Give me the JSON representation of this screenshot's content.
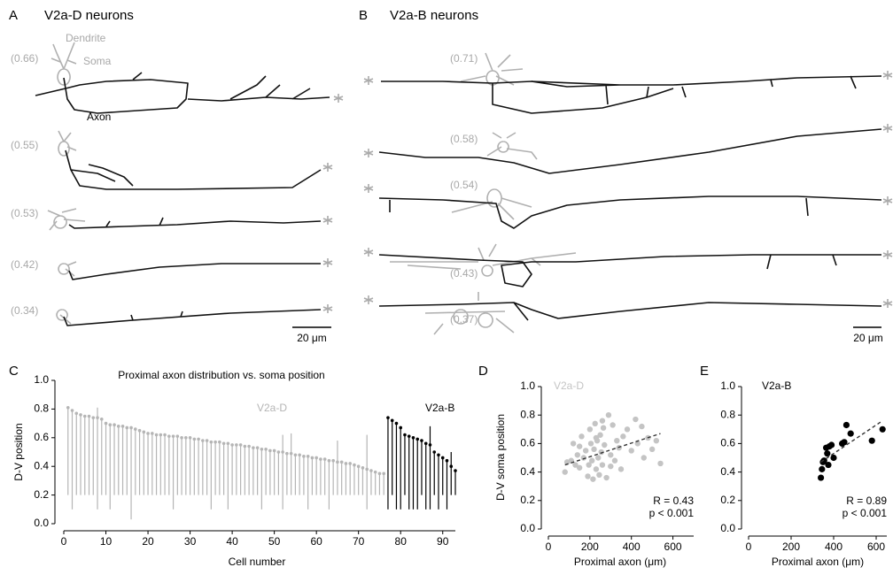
{
  "panel_a": {
    "letter": "A",
    "title": "V2a-D neurons",
    "dendrite": "Dendrite",
    "soma": "Soma",
    "axon": "Axon",
    "positions": [
      "(0.66)",
      "(0.55)",
      "(0.53)",
      "(0.42)",
      "(0.34)"
    ],
    "scale": "20 μm"
  },
  "panel_b": {
    "letter": "B",
    "title": "V2a-B neurons",
    "positions": [
      "(0.71)",
      "(0.58)",
      "(0.54)",
      "(0.43)",
      "(0.37)"
    ],
    "scale": "20 μm"
  },
  "chart_data": [
    {
      "type": "dot_range",
      "panel": "C",
      "title": "Proximal axon distribution vs. soma position",
      "x_label": "Cell number",
      "y_label": "D-V position",
      "xlim": [
        0,
        93
      ],
      "xticks": [
        0,
        10,
        20,
        30,
        40,
        50,
        60,
        70,
        80,
        90
      ],
      "ylim": [
        0,
        1
      ],
      "yticks": [
        {
          "value": 0,
          "label": "0.0"
        },
        {
          "value": 0.2,
          "label": "0.2"
        },
        {
          "value": 0.4,
          "label": "0.4"
        },
        {
          "value": 0.6,
          "label": "0.6"
        },
        {
          "value": 0.8,
          "label": "0.8"
        },
        {
          "value": 1,
          "label": "1.0"
        }
      ],
      "series": [
        {
          "name": "V2a-D",
          "color": "#b5b5b5",
          "x": [
            1,
            2,
            3,
            4,
            5,
            6,
            7,
            8,
            9,
            10,
            11,
            12,
            13,
            14,
            15,
            16,
            17,
            18,
            19,
            20,
            21,
            22,
            23,
            24,
            25,
            26,
            27,
            28,
            29,
            30,
            31,
            32,
            33,
            34,
            35,
            36,
            37,
            38,
            39,
            40,
            41,
            42,
            43,
            44,
            45,
            46,
            47,
            48,
            49,
            50,
            51,
            52,
            53,
            54,
            55,
            56,
            57,
            58,
            59,
            60,
            61,
            62,
            63,
            64,
            65,
            66,
            67,
            68,
            69,
            70,
            71,
            72,
            73,
            74,
            75,
            76
          ],
          "values": [
            0.81,
            0.79,
            0.77,
            0.76,
            0.75,
            0.75,
            0.74,
            0.74,
            0.73,
            0.7,
            0.69,
            0.69,
            0.68,
            0.68,
            0.67,
            0.67,
            0.66,
            0.65,
            0.64,
            0.63,
            0.63,
            0.62,
            0.62,
            0.62,
            0.61,
            0.61,
            0.61,
            0.6,
            0.6,
            0.6,
            0.59,
            0.59,
            0.58,
            0.58,
            0.57,
            0.57,
            0.57,
            0.56,
            0.56,
            0.55,
            0.55,
            0.55,
            0.54,
            0.54,
            0.53,
            0.53,
            0.52,
            0.52,
            0.51,
            0.51,
            0.5,
            0.5,
            0.49,
            0.49,
            0.48,
            0.48,
            0.47,
            0.47,
            0.46,
            0.46,
            0.45,
            0.45,
            0.44,
            0.44,
            0.43,
            0.43,
            0.42,
            0.42,
            0.41,
            0.4,
            0.39,
            0.38,
            0.37,
            0.36,
            0.35,
            0.35
          ],
          "low": [
            0.2,
            0.1,
            0.2,
            0.2,
            0.2,
            0.2,
            0.2,
            0.1,
            0.2,
            0.2,
            0.1,
            0.2,
            0.2,
            0.2,
            0.2,
            0.03,
            0.2,
            0.2,
            0.2,
            0.2,
            0.2,
            0.2,
            0.2,
            0.2,
            0.2,
            0.1,
            0.2,
            0.2,
            0.2,
            0.2,
            0.2,
            0.2,
            0.2,
            0.2,
            0.1,
            0.2,
            0.2,
            0.2,
            0.1,
            0.2,
            0.2,
            0.2,
            0.2,
            0.2,
            0.2,
            0.2,
            0.1,
            0.2,
            0.2,
            0.2,
            0.2,
            0.1,
            0.2,
            0.2,
            0.2,
            0.2,
            0.2,
            0.1,
            0.2,
            0.2,
            0.2,
            0.2,
            0.1,
            0.2,
            0.2,
            0.2,
            0.2,
            0.2,
            0.2,
            0.2,
            0.2,
            0.1,
            0.2,
            0.2,
            0.2,
            0.2
          ],
          "high": [
            0.81,
            0.79,
            0.77,
            0.76,
            0.75,
            0.75,
            0.74,
            0.81,
            0.73,
            0.7,
            0.69,
            0.69,
            0.68,
            0.68,
            0.67,
            0.67,
            0.66,
            0.65,
            0.64,
            0.63,
            0.63,
            0.62,
            0.62,
            0.62,
            0.61,
            0.61,
            0.61,
            0.6,
            0.6,
            0.6,
            0.59,
            0.59,
            0.58,
            0.58,
            0.57,
            0.57,
            0.57,
            0.56,
            0.56,
            0.55,
            0.55,
            0.55,
            0.54,
            0.54,
            0.53,
            0.53,
            0.52,
            0.52,
            0.51,
            0.51,
            0.5,
            0.62,
            0.49,
            0.63,
            0.48,
            0.48,
            0.47,
            0.47,
            0.46,
            0.46,
            0.45,
            0.45,
            0.44,
            0.44,
            0.58,
            0.43,
            0.42,
            0.42,
            0.41,
            0.4,
            0.39,
            0.62,
            0.37,
            0.36,
            0.35,
            0.35
          ]
        },
        {
          "name": "V2a-B",
          "color": "#000000",
          "x": [
            77,
            78,
            79,
            80,
            81,
            82,
            83,
            84,
            85,
            86,
            87,
            88,
            89,
            90,
            91,
            92,
            93
          ],
          "values": [
            0.74,
            0.72,
            0.7,
            0.67,
            0.62,
            0.61,
            0.6,
            0.59,
            0.58,
            0.56,
            0.55,
            0.5,
            0.48,
            0.46,
            0.44,
            0.4,
            0.37
          ],
          "low": [
            0.1,
            0.2,
            0.1,
            0.1,
            0.2,
            0.1,
            0.1,
            0.1,
            0.2,
            0.1,
            0.1,
            0.2,
            0.1,
            0.2,
            0.1,
            0.2,
            0.2
          ],
          "high": [
            0.74,
            0.72,
            0.7,
            0.67,
            0.62,
            0.61,
            0.6,
            0.59,
            0.58,
            0.56,
            0.68,
            0.5,
            0.48,
            0.46,
            0.44,
            0.5,
            0.37
          ]
        }
      ]
    },
    {
      "type": "scatter",
      "panel": "D",
      "x_label": "Proximal axon (μm)",
      "y_label": "D-V soma position",
      "xlim": [
        0,
        700
      ],
      "xticks": [
        0,
        200,
        400,
        600
      ],
      "ylim": [
        0,
        1
      ],
      "yticks": [
        {
          "value": 0,
          "label": "0.0"
        },
        {
          "value": 0.2,
          "label": "0.2"
        },
        {
          "value": 0.4,
          "label": "0.4"
        },
        {
          "value": 0.6,
          "label": "0.6"
        },
        {
          "value": 0.8,
          "label": "0.8"
        },
        {
          "value": 1,
          "label": "1.0"
        }
      ],
      "series": [
        {
          "name": "V2a-D",
          "color": "#c4c4c4",
          "x": [
            80,
            90,
            110,
            120,
            130,
            140,
            150,
            160,
            170,
            180,
            190,
            195,
            200,
            205,
            210,
            215,
            220,
            225,
            230,
            235,
            240,
            245,
            250,
            255,
            260,
            265,
            270,
            280,
            290,
            300,
            310,
            320,
            330,
            340,
            350,
            360,
            380,
            400,
            420,
            430,
            450,
            460,
            480,
            500,
            520,
            540,
            150,
            230,
            260,
            300
          ],
          "values": [
            0.4,
            0.47,
            0.48,
            0.6,
            0.45,
            0.52,
            0.43,
            0.65,
            0.5,
            0.55,
            0.37,
            0.45,
            0.7,
            0.6,
            0.48,
            0.35,
            0.56,
            0.74,
            0.42,
            0.62,
            0.5,
            0.38,
            0.66,
            0.54,
            0.45,
            0.71,
            0.59,
            0.36,
            0.8,
            0.52,
            0.73,
            0.48,
            0.62,
            0.57,
            0.42,
            0.65,
            0.7,
            0.55,
            0.77,
            0.6,
            0.72,
            0.5,
            0.64,
            0.56,
            0.62,
            0.46,
            0.58,
            0.64,
            0.76,
            0.44
          ]
        }
      ],
      "trend": {
        "x": [
          80,
          540
        ],
        "y": [
          0.45,
          0.67
        ]
      },
      "annotations": [
        "R = 0.43",
        "p < 0.001"
      ]
    },
    {
      "type": "scatter",
      "panel": "E",
      "x_label": "Proximal axon (μm)",
      "xlim": [
        0,
        650
      ],
      "xticks": [
        0,
        200,
        400,
        600
      ],
      "ylim": [
        0,
        1
      ],
      "yticks": [
        {
          "value": 0,
          "label": "0.0"
        },
        {
          "value": 0.2,
          "label": "0.2"
        },
        {
          "value": 0.4,
          "label": "0.4"
        },
        {
          "value": 0.6,
          "label": "0.6"
        },
        {
          "value": 0.8,
          "label": "0.8"
        },
        {
          "value": 1,
          "label": "1.0"
        }
      ],
      "series": [
        {
          "name": "V2a-B",
          "color": "#000000",
          "x": [
            340,
            345,
            350,
            355,
            365,
            370,
            375,
            380,
            390,
            400,
            440,
            450,
            460,
            480,
            580,
            630
          ],
          "values": [
            0.36,
            0.42,
            0.47,
            0.48,
            0.57,
            0.53,
            0.45,
            0.58,
            0.59,
            0.5,
            0.6,
            0.61,
            0.73,
            0.67,
            0.62,
            0.7
          ]
        }
      ],
      "trend": {
        "x": [
          340,
          630
        ],
        "y": [
          0.47,
          0.76
        ]
      },
      "annotations": [
        "R = 0.89",
        "p < 0.001"
      ]
    }
  ]
}
